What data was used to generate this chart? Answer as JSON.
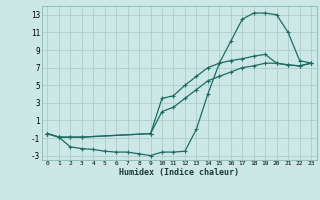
{
  "xlabel": "Humidex (Indice chaleur)",
  "bg_color": "#cce8e6",
  "grid_color": "#b0ccca",
  "line_color": "#1e6b65",
  "xlim": [
    -0.5,
    23.5
  ],
  "ylim": [
    -3.5,
    14.0
  ],
  "xticks": [
    0,
    1,
    2,
    3,
    4,
    5,
    6,
    7,
    8,
    9,
    10,
    11,
    12,
    13,
    14,
    15,
    16,
    17,
    18,
    19,
    20,
    21,
    22,
    23
  ],
  "yticks": [
    -3,
    -1,
    1,
    3,
    5,
    7,
    9,
    11,
    13
  ],
  "line1_x": [
    0,
    1,
    2,
    3,
    4,
    5,
    6,
    7,
    8,
    9,
    10,
    11,
    12,
    13,
    14,
    15,
    16,
    17,
    18,
    19,
    20,
    21,
    22,
    23
  ],
  "line1_y": [
    -0.5,
    -0.9,
    -2.0,
    -2.2,
    -2.3,
    -2.5,
    -2.6,
    -2.6,
    -2.8,
    -3.0,
    -2.6,
    -2.6,
    -2.5,
    0.0,
    4.0,
    7.5,
    10.0,
    12.5,
    13.2,
    13.2,
    13.0,
    11.0,
    7.8,
    7.5
  ],
  "line2_x": [
    0,
    1,
    2,
    3,
    9,
    10,
    11,
    12,
    13,
    14,
    15,
    16,
    17,
    18,
    19,
    20,
    21,
    22,
    23
  ],
  "line2_y": [
    -0.5,
    -0.9,
    -0.9,
    -0.9,
    -0.5,
    3.5,
    3.8,
    5.0,
    6.0,
    7.0,
    7.5,
    7.8,
    8.0,
    8.3,
    8.5,
    7.5,
    7.3,
    7.2,
    7.5
  ],
  "line3_x": [
    0,
    1,
    2,
    3,
    9,
    10,
    11,
    12,
    13,
    14,
    15,
    16,
    17,
    18,
    19,
    20,
    21,
    22,
    23
  ],
  "line3_y": [
    -0.5,
    -0.9,
    -0.9,
    -0.9,
    -0.5,
    2.0,
    2.5,
    3.5,
    4.5,
    5.5,
    6.0,
    6.5,
    7.0,
    7.2,
    7.5,
    7.5,
    7.3,
    7.2,
    7.5
  ]
}
